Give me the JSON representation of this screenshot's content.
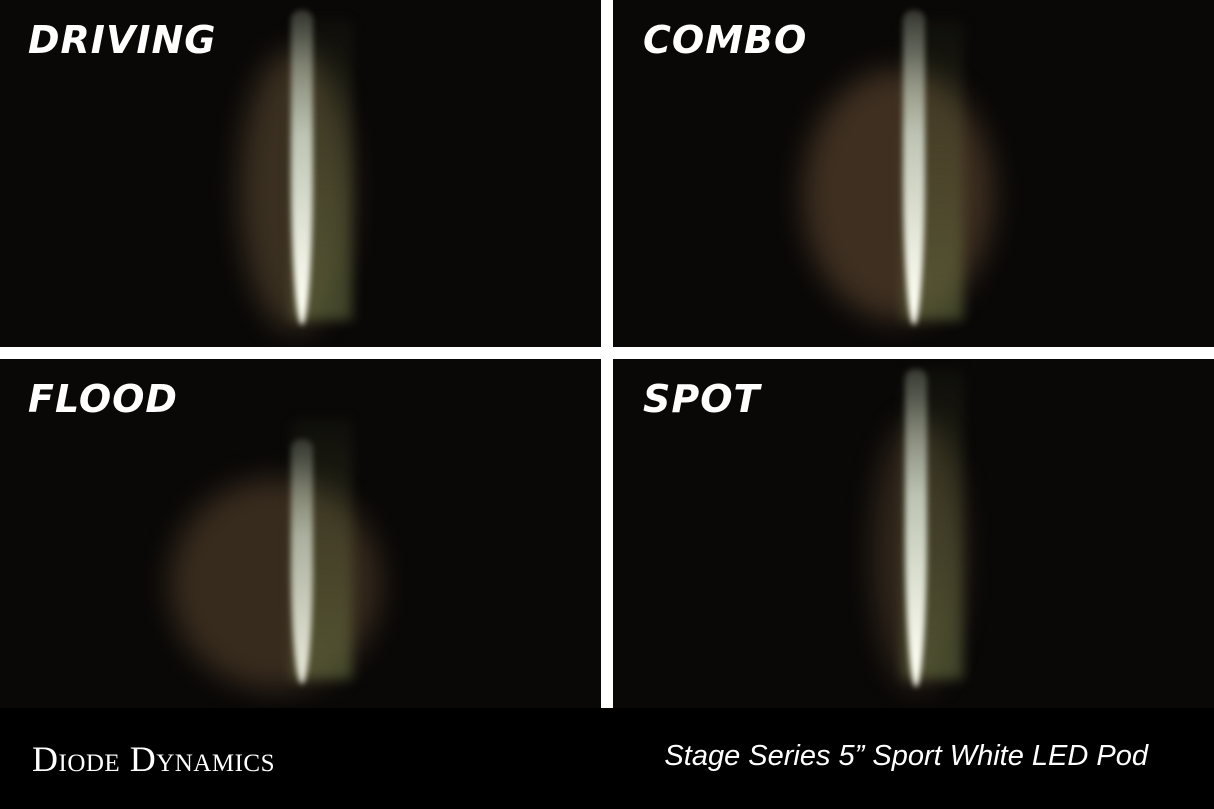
{
  "panels": [
    {
      "label": "DRIVING"
    },
    {
      "label": "COMBO"
    },
    {
      "label": "FLOOD"
    },
    {
      "label": "SPOT"
    }
  ],
  "footer": {
    "brand": "Diode Dynamics",
    "product": "Stage Series 5” Sport White LED Pod"
  }
}
